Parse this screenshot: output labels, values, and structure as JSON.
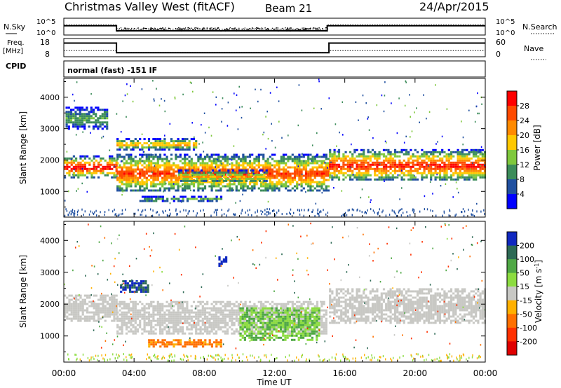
{
  "header": {
    "title": "Christmas Valley West (fitACF)",
    "beam": "Beam 21",
    "date": "24/Apr/2015"
  },
  "strip_labels": {
    "nsky": "N.Sky",
    "nsearch": "N.Search",
    "freq_line1": "Freq.",
    "freq_line2": "[MHz]",
    "nave": "Nave",
    "cpid": "CPID",
    "cpid_value": "normal (fast) -151 IF",
    "noise_ticks": [
      "10^5",
      "10^0"
    ],
    "freq_ticks": [
      "18",
      "8"
    ],
    "nave_ticks": [
      "60",
      "0"
    ]
  },
  "panels": {
    "power": {
      "ylabel": "Slant Range [km]",
      "cbar_label": "Power [dB]",
      "cbar_ticks": [
        "28",
        "24",
        "20",
        "16",
        "12",
        "8",
        "4"
      ],
      "cbar_colors": [
        "#ff0000",
        "#ff4a00",
        "#ff8a00",
        "#ffc800",
        "#7fc83c",
        "#3c8c5a",
        "#2050a0",
        "#0000ff"
      ]
    },
    "velocity": {
      "ylabel": "Slant Range [km]",
      "cbar_label": "Velocity [m s^-1]",
      "cbar_ticks": [
        "200",
        "100",
        "50",
        "15",
        "-15",
        "-50",
        "-100",
        "-200"
      ],
      "cbar_colors": [
        "#1028c0",
        "#2d6a55",
        "#4fa845",
        "#8cdc40",
        "#c8c8c4",
        "#ffb000",
        "#ff7000",
        "#ff3000",
        "#e00000"
      ]
    }
  },
  "xaxis": {
    "label": "Time UT",
    "ticks": [
      "00:00",
      "04:00",
      "08:00",
      "12:00",
      "16:00",
      "20:00",
      "00:00"
    ]
  },
  "chart_data": {
    "type": "heatmap",
    "title": "Christmas Valley West (fitACF)",
    "xlabel": "Time UT",
    "ylabel": "Slant Range [km]",
    "x_range_hours": [
      0,
      24
    ],
    "y_range_km": [
      180,
      4600
    ],
    "y_ticks": [
      1000,
      2000,
      3000,
      4000
    ],
    "strips": {
      "noise_levels": {
        "sky_hours": [
          0,
          3,
          3,
          15,
          15,
          24
        ],
        "sky_values": [
          0.55,
          0.55,
          0.25,
          0.25,
          0.55,
          0.55
        ],
        "search_values": [
          0.6,
          0.6,
          0.35,
          0.35,
          0.6,
          0.6
        ]
      },
      "freq_mhz": {
        "hours": [
          0,
          3,
          3,
          15.1,
          15.1,
          24
        ],
        "values": [
          15.5,
          15.5,
          10.2,
          10.2,
          15.5,
          15.5
        ],
        "ylim": [
          8,
          18
        ]
      },
      "nave": {
        "hours": [
          0,
          3,
          3,
          15.1,
          15.1,
          24
        ],
        "values": [
          20,
          20,
          14,
          14,
          20,
          20
        ],
        "ylim": [
          0,
          60
        ]
      }
    },
    "power_regions": [
      {
        "t0": 0.0,
        "t1": 3.0,
        "r0": 1450,
        "r1": 2150,
        "peak_db": 30
      },
      {
        "t0": 3.0,
        "t1": 15.1,
        "r0": 1000,
        "r1": 2200,
        "peak_db": 26
      },
      {
        "t0": 6.5,
        "t1": 11.5,
        "r0": 1300,
        "r1": 1700,
        "peak_db": 18
      },
      {
        "t0": 4.3,
        "t1": 9.0,
        "r0": 700,
        "r1": 860,
        "peak_db": 12
      },
      {
        "t0": 3.0,
        "t1": 7.5,
        "r0": 2350,
        "r1": 2700,
        "peak_db": 20
      },
      {
        "t0": 15.1,
        "t1": 24.0,
        "r0": 1350,
        "r1": 2350,
        "peak_db": 28
      },
      {
        "t0": 0.1,
        "t1": 2.5,
        "r0": 3000,
        "r1": 3700,
        "peak_db": 10
      }
    ],
    "velocity_regions": [
      {
        "t0": 0.0,
        "t1": 3.0,
        "r0": 1450,
        "r1": 2300,
        "v": 0
      },
      {
        "t0": 3.0,
        "t1": 15.0,
        "r0": 1100,
        "r1": 2100,
        "v": 0
      },
      {
        "t0": 3.2,
        "t1": 4.8,
        "r0": 2400,
        "r1": 2750,
        "v": 150
      },
      {
        "t0": 4.8,
        "t1": 9.0,
        "r0": 700,
        "r1": 900,
        "v": -40
      },
      {
        "t0": 10.0,
        "t1": 14.5,
        "r0": 900,
        "r1": 1900,
        "v": 30
      },
      {
        "t0": 15.1,
        "t1": 24.0,
        "r0": 1400,
        "r1": 2500,
        "v": 0
      },
      {
        "t0": 8.8,
        "t1": 9.3,
        "r0": 3200,
        "r1": 3500,
        "v": 220
      }
    ]
  }
}
